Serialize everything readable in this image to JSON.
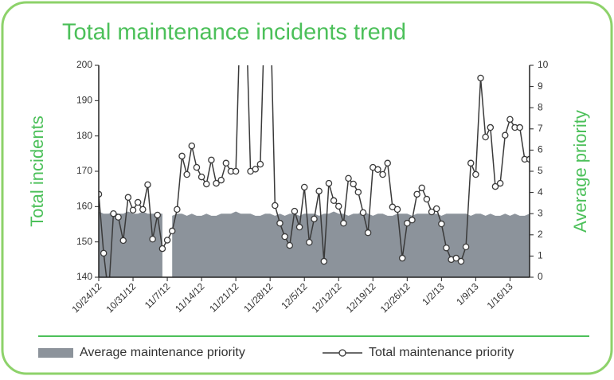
{
  "chart_data": {
    "type": "line",
    "title": "Total maintenance incidents trend",
    "y_label": "Total incidents",
    "y2_label": "Average priority",
    "x": [
      "10/24/12",
      "10/25/12",
      "10/26/12",
      "10/27/12",
      "10/28/12",
      "10/29/12",
      "10/30/12",
      "10/31/12",
      "11/1/12",
      "11/2/12",
      "11/3/12",
      "11/4/12",
      "11/5/12",
      "11/6/12",
      "11/7/12",
      "11/8/12",
      "11/9/12",
      "11/10/12",
      "11/11/12",
      "11/12/12",
      "11/13/12",
      "11/14/12",
      "11/15/12",
      "11/16/12",
      "11/17/12",
      "11/18/12",
      "11/19/12",
      "11/20/12",
      "11/21/12",
      "11/22/12",
      "11/23/12",
      "11/24/12",
      "11/25/12",
      "11/26/12",
      "11/27/12",
      "11/28/12",
      "11/29/12",
      "11/30/12",
      "12/1/12",
      "12/2/12",
      "12/3/12",
      "12/4/12",
      "12/5/12",
      "12/6/12",
      "12/7/12",
      "12/8/12",
      "12/9/12",
      "12/10/12",
      "12/11/12",
      "12/12/12",
      "12/13/12",
      "12/14/12",
      "12/15/12",
      "12/16/12",
      "12/17/12",
      "12/18/12",
      "12/19/12",
      "12/20/12",
      "12/21/12",
      "12/22/12",
      "12/23/12",
      "12/24/12",
      "12/25/12",
      "12/26/12",
      "12/27/12",
      "12/28/12",
      "12/29/12",
      "12/30/12",
      "12/31/12",
      "1/1/13",
      "1/2/13",
      "1/3/13",
      "1/4/13",
      "1/5/13",
      "1/6/13",
      "1/7/13",
      "1/8/13",
      "1/9/13",
      "1/10/13",
      "1/11/13",
      "1/12/13",
      "1/13/13",
      "1/14/13",
      "1/15/13",
      "1/16/13",
      "1/17/13",
      "1/18/13",
      "1/19/13",
      "1/20/13"
    ],
    "xlim": [
      "10/24/12",
      "1/20/13"
    ],
    "xticks": [
      "10/24/12",
      "10/31/12",
      "11/7/12",
      "11/14/12",
      "11/21/12",
      "11/28/12",
      "12/5/12",
      "12/12/12",
      "12/19/12",
      "12/26/12",
      "1/2/13",
      "1/9/13",
      "1/16/13"
    ],
    "ylim": [
      140,
      200
    ],
    "yticks": [
      140,
      150,
      160,
      170,
      180,
      190,
      200
    ],
    "y2lim": [
      0,
      10
    ],
    "y2ticks": [
      0,
      1,
      2,
      3,
      4,
      5,
      6,
      7,
      8,
      9,
      10
    ],
    "series": [
      {
        "name": "Average maintenance priority",
        "type": "area",
        "axis": "y2",
        "color": "#8c939b",
        "values": [
          3.1,
          3.0,
          3.0,
          3.1,
          3.0,
          3.0,
          3.1,
          3.0,
          3.0,
          3.1,
          3.0,
          3.0,
          3.0,
          3.0,
          null,
          2.9,
          3.0,
          3.0,
          2.9,
          3.0,
          2.9,
          2.9,
          3.0,
          2.9,
          2.9,
          3.0,
          3.0,
          3.0,
          3.1,
          3.0,
          3.0,
          3.0,
          2.9,
          2.9,
          3.0,
          3.0,
          2.9,
          3.0,
          2.9,
          3.0,
          3.0,
          2.9,
          3.0,
          3.0,
          3.0,
          2.9,
          3.0,
          3.0,
          3.1,
          3.0,
          3.0,
          2.9,
          3.0,
          3.0,
          3.1,
          3.0,
          2.9,
          3.0,
          3.0,
          2.9,
          2.9,
          3.0,
          3.0,
          3.0,
          2.9,
          3.0,
          3.0,
          3.0,
          3.0,
          3.0,
          2.9,
          3.0,
          3.0,
          3.0,
          3.0,
          3.0,
          2.9,
          3.0,
          3.0,
          2.9,
          3.0,
          2.9,
          2.9,
          3.0,
          2.9,
          3.0,
          2.9,
          2.9,
          3.0
        ]
      },
      {
        "name": "Total maintenance priority",
        "type": "line",
        "color": "#3a3a3a",
        "values": [
          163.5,
          146.8,
          135,
          158,
          157,
          150.4,
          162.6,
          159,
          161.2,
          159.2,
          166.2,
          150.8,
          157.6,
          148.1,
          150.5,
          153.1,
          159.2,
          174.3,
          169.1,
          177.2,
          171.1,
          168.4,
          166.4,
          173.2,
          166.6,
          167.5,
          172.3,
          170,
          170,
          220,
          220,
          170,
          170.6,
          172,
          220,
          220,
          160.3,
          155.3,
          151.5,
          149,
          158.7,
          154.2,
          165.5,
          149.9,
          156.5,
          164.4,
          144.5,
          166.6,
          161.7,
          160.1,
          155.3,
          168,
          166.4,
          164.1,
          158.3,
          152.6,
          171.1,
          170.5,
          169.1,
          172.3,
          159.9,
          159.2,
          145.4,
          155.3,
          156.2,
          163.5,
          165.3,
          162.1,
          158.5,
          159.4,
          155.1,
          148.3,
          145,
          145.4,
          144.5,
          148.6,
          172.3,
          169.1,
          196.4,
          179.7,
          182.4,
          165.7,
          166.6,
          180.2,
          184.7,
          182.4,
          182.4,
          173.4,
          173.4
        ]
      }
    ]
  }
}
